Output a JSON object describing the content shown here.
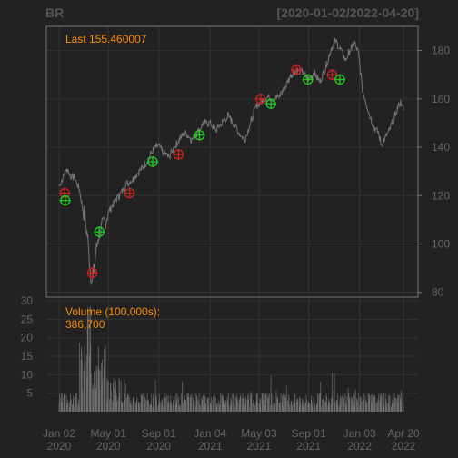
{
  "chart_data": {
    "type": "line",
    "symbol": "BR",
    "date_range": "[2020-01-02/2022-04-20]",
    "x_range": [
      "2020-01-02",
      "2022-04-20"
    ],
    "x_ticks": [
      {
        "date": "2020-01-02",
        "label": [
          "Jan 02",
          "2020"
        ]
      },
      {
        "date": "2020-05-01",
        "label": [
          "May 01",
          "2020"
        ]
      },
      {
        "date": "2020-09-01",
        "label": [
          "Sep 01",
          "2020"
        ]
      },
      {
        "date": "2021-01-04",
        "label": [
          "Jan 04",
          "2021"
        ]
      },
      {
        "date": "2021-05-03",
        "label": [
          "May 03",
          "2021"
        ]
      },
      {
        "date": "2021-09-01",
        "label": [
          "Sep 01",
          "2021"
        ]
      },
      {
        "date": "2022-01-03",
        "label": [
          "Jan 03",
          "2022"
        ]
      },
      {
        "date": "2022-04-20",
        "label": [
          "Apr 20",
          "2022"
        ]
      }
    ],
    "price": {
      "ylim": [
        78,
        190
      ],
      "y_ticks": [
        80,
        100,
        120,
        140,
        160,
        180
      ],
      "last_label": "Last 155.460007",
      "series": [
        [
          "2020-01-02",
          124
        ],
        [
          "2020-01-13",
          128
        ],
        [
          "2020-01-22",
          131
        ],
        [
          "2020-01-31",
          128
        ],
        [
          "2020-02-10",
          127
        ],
        [
          "2020-02-20",
          123
        ],
        [
          "2020-02-27",
          116
        ],
        [
          "2020-03-05",
          111
        ],
        [
          "2020-03-12",
          102
        ],
        [
          "2020-03-19",
          88
        ],
        [
          "2020-03-24",
          85
        ],
        [
          "2020-03-31",
          96
        ],
        [
          "2020-04-09",
          105
        ],
        [
          "2020-04-20",
          108
        ],
        [
          "2020-05-01",
          113
        ],
        [
          "2020-05-15",
          117
        ],
        [
          "2020-06-01",
          121
        ],
        [
          "2020-06-15",
          125
        ],
        [
          "2020-07-01",
          127
        ],
        [
          "2020-07-15",
          130
        ],
        [
          "2020-08-03",
          134
        ],
        [
          "2020-08-14",
          138
        ],
        [
          "2020-08-31",
          141
        ],
        [
          "2020-09-10",
          138
        ],
        [
          "2020-09-25",
          136
        ],
        [
          "2020-10-09",
          140
        ],
        [
          "2020-10-23",
          144
        ],
        [
          "2020-11-06",
          146
        ],
        [
          "2020-11-20",
          143
        ],
        [
          "2020-12-04",
          146
        ],
        [
          "2020-12-18",
          150
        ],
        [
          "2021-01-04",
          150
        ],
        [
          "2021-01-19",
          147
        ],
        [
          "2021-02-01",
          150
        ],
        [
          "2021-02-17",
          153
        ],
        [
          "2021-03-01",
          150
        ],
        [
          "2021-03-15",
          146
        ],
        [
          "2021-03-29",
          143
        ],
        [
          "2021-04-12",
          150
        ],
        [
          "2021-04-26",
          157
        ],
        [
          "2021-05-10",
          159
        ],
        [
          "2021-05-24",
          161
        ],
        [
          "2021-06-07",
          160
        ],
        [
          "2021-06-21",
          161
        ],
        [
          "2021-07-06",
          165
        ],
        [
          "2021-07-20",
          170
        ],
        [
          "2021-08-03",
          172
        ],
        [
          "2021-08-17",
          171
        ],
        [
          "2021-08-31",
          168
        ],
        [
          "2021-09-14",
          171
        ],
        [
          "2021-09-28",
          167
        ],
        [
          "2021-10-12",
          173
        ],
        [
          "2021-10-26",
          181
        ],
        [
          "2021-11-05",
          184
        ],
        [
          "2021-11-16",
          181
        ],
        [
          "2021-11-30",
          176
        ],
        [
          "2021-12-10",
          180
        ],
        [
          "2021-12-22",
          183
        ],
        [
          "2021-12-31",
          179
        ],
        [
          "2022-01-10",
          164
        ],
        [
          "2022-01-20",
          158
        ],
        [
          "2022-01-28",
          153
        ],
        [
          "2022-02-08",
          148
        ],
        [
          "2022-02-18",
          146
        ],
        [
          "2022-02-25",
          141
        ],
        [
          "2022-03-07",
          144
        ],
        [
          "2022-03-17",
          147
        ],
        [
          "2022-03-28",
          152
        ],
        [
          "2022-04-07",
          157
        ],
        [
          "2022-04-14",
          159
        ],
        [
          "2022-04-20",
          155.460007
        ]
      ],
      "markers": {
        "sell": [
          [
            "2020-01-16",
            121
          ],
          [
            "2020-03-23",
            88
          ],
          [
            "2020-06-22",
            121
          ],
          [
            "2020-10-19",
            137
          ],
          [
            "2021-05-07",
            160
          ],
          [
            "2021-08-02",
            172
          ],
          [
            "2021-10-28",
            170
          ]
        ],
        "buy": [
          [
            "2020-01-17",
            118
          ],
          [
            "2020-04-09",
            105
          ],
          [
            "2020-08-17",
            134
          ],
          [
            "2020-12-09",
            145
          ],
          [
            "2021-06-01",
            158
          ],
          [
            "2021-08-30",
            168
          ],
          [
            "2021-11-16",
            168
          ]
        ]
      }
    },
    "volume": {
      "label": "Volume (100,000s):",
      "last_value": "386,700",
      "ylim": [
        0,
        31
      ],
      "y_ticks": [
        5,
        10,
        15,
        20,
        25,
        30
      ]
    },
    "colors": {
      "background": "#222222",
      "frame": "#777777",
      "grid": "#333333",
      "price_line": "#777777",
      "volume_bar": "#707070",
      "sell_marker": "#cc2222",
      "buy_marker": "#22cc22",
      "highlight_text": "#ff8c00",
      "title_text": "#555555"
    }
  }
}
